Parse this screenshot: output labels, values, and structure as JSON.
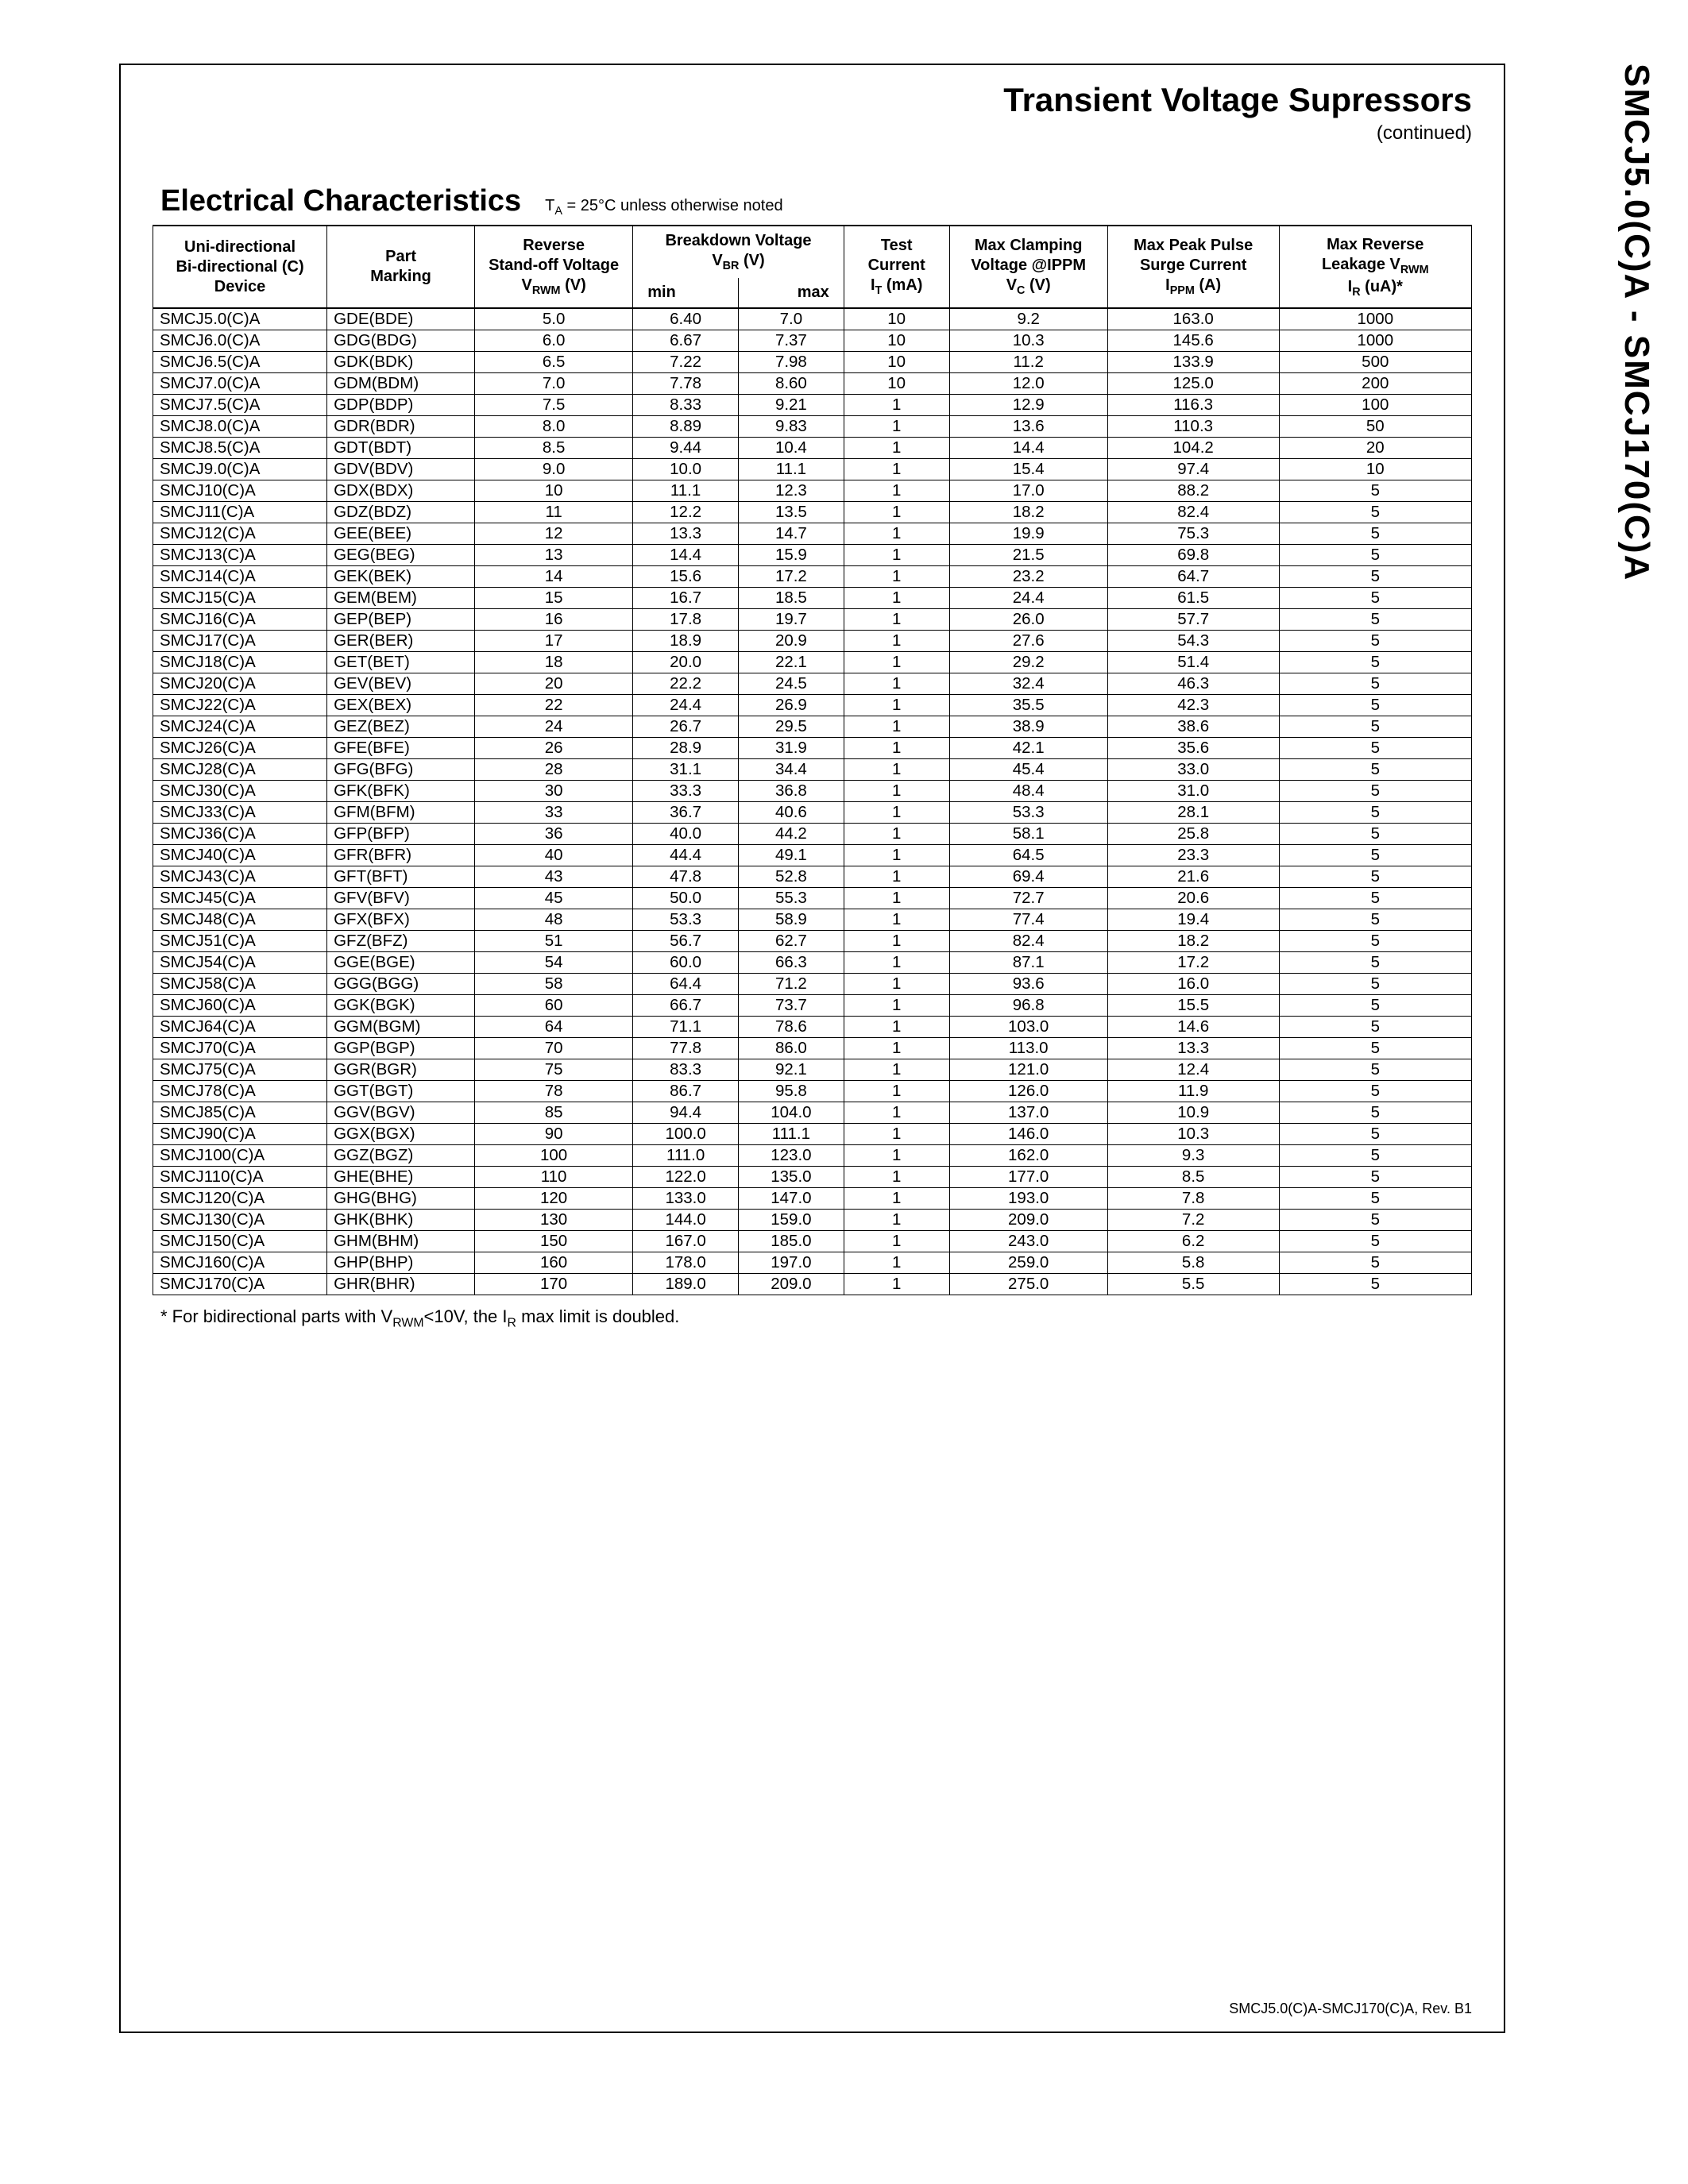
{
  "vertical_label": "SMCJ5.0(C)A - SMCJ170(C)A",
  "header": {
    "title": "Transient Voltage Supressors",
    "continued": "(continued)"
  },
  "section": {
    "title": "Electrical Characteristics",
    "condition": "T_A = 25°C unless otherwise noted"
  },
  "columns": {
    "device": [
      "Uni-directional",
      "Bi-directional (C)",
      "Device"
    ],
    "marking": [
      "Part",
      "Marking"
    ],
    "vrwm": [
      "Reverse",
      "Stand-off Voltage",
      "V_RWM (V)"
    ],
    "breakdown": [
      "Breakdown Voltage",
      "V_BR (V)"
    ],
    "breakdown_min": "min",
    "breakdown_max": "max",
    "it": [
      "Test",
      "Current",
      "I_T (mA)"
    ],
    "vc": [
      "Max  Clamping",
      "Voltage @IPPM",
      "V_C (V)"
    ],
    "ippm": [
      "Max Peak Pulse",
      "Surge Current",
      "I_PPM (A)"
    ],
    "ir": [
      "Max Reverse",
      "Leakage V_RWM",
      "I_R (uA)*"
    ]
  },
  "rows": [
    {
      "device": "SMCJ5.0(C)A",
      "marking": "GDE(BDE)",
      "vrwm": "5.0",
      "bv_min": "6.40",
      "bv_max": "7.0",
      "it": "10",
      "vc": "9.2",
      "ippm": "163.0",
      "ir": "1000"
    },
    {
      "device": "SMCJ6.0(C)A",
      "marking": "GDG(BDG)",
      "vrwm": "6.0",
      "bv_min": "6.67",
      "bv_max": "7.37",
      "it": "10",
      "vc": "10.3",
      "ippm": "145.6",
      "ir": "1000"
    },
    {
      "device": "SMCJ6.5(C)A",
      "marking": "GDK(BDK)",
      "vrwm": "6.5",
      "bv_min": "7.22",
      "bv_max": "7.98",
      "it": "10",
      "vc": "11.2",
      "ippm": "133.9",
      "ir": "500"
    },
    {
      "device": "SMCJ7.0(C)A",
      "marking": "GDM(BDM)",
      "vrwm": "7.0",
      "bv_min": "7.78",
      "bv_max": "8.60",
      "it": "10",
      "vc": "12.0",
      "ippm": "125.0",
      "ir": "200"
    },
    {
      "device": "SMCJ7.5(C)A",
      "marking": "GDP(BDP)",
      "vrwm": "7.5",
      "bv_min": "8.33",
      "bv_max": "9.21",
      "it": "1",
      "vc": "12.9",
      "ippm": "116.3",
      "ir": "100"
    },
    {
      "device": "SMCJ8.0(C)A",
      "marking": "GDR(BDR)",
      "vrwm": "8.0",
      "bv_min": "8.89",
      "bv_max": "9.83",
      "it": "1",
      "vc": "13.6",
      "ippm": "110.3",
      "ir": "50"
    },
    {
      "device": "SMCJ8.5(C)A",
      "marking": "GDT(BDT)",
      "vrwm": "8.5",
      "bv_min": "9.44",
      "bv_max": "10.4",
      "it": "1",
      "vc": "14.4",
      "ippm": "104.2",
      "ir": "20"
    },
    {
      "device": "SMCJ9.0(C)A",
      "marking": "GDV(BDV)",
      "vrwm": "9.0",
      "bv_min": "10.0",
      "bv_max": "11.1",
      "it": "1",
      "vc": "15.4",
      "ippm": "97.4",
      "ir": "10"
    },
    {
      "device": "SMCJ10(C)A",
      "marking": "GDX(BDX)",
      "vrwm": "10",
      "bv_min": "11.1",
      "bv_max": "12.3",
      "it": "1",
      "vc": "17.0",
      "ippm": "88.2",
      "ir": "5"
    },
    {
      "device": "SMCJ11(C)A",
      "marking": "GDZ(BDZ)",
      "vrwm": "11",
      "bv_min": "12.2",
      "bv_max": "13.5",
      "it": "1",
      "vc": "18.2",
      "ippm": "82.4",
      "ir": "5"
    },
    {
      "device": "SMCJ12(C)A",
      "marking": "GEE(BEE)",
      "vrwm": "12",
      "bv_min": "13.3",
      "bv_max": "14.7",
      "it": "1",
      "vc": "19.9",
      "ippm": "75.3",
      "ir": "5"
    },
    {
      "device": "SMCJ13(C)A",
      "marking": "GEG(BEG)",
      "vrwm": "13",
      "bv_min": "14.4",
      "bv_max": "15.9",
      "it": "1",
      "vc": "21.5",
      "ippm": "69.8",
      "ir": "5"
    },
    {
      "device": "SMCJ14(C)A",
      "marking": "GEK(BEK)",
      "vrwm": "14",
      "bv_min": "15.6",
      "bv_max": "17.2",
      "it": "1",
      "vc": "23.2",
      "ippm": "64.7",
      "ir": "5"
    },
    {
      "device": "SMCJ15(C)A",
      "marking": "GEM(BEM)",
      "vrwm": "15",
      "bv_min": "16.7",
      "bv_max": "18.5",
      "it": "1",
      "vc": "24.4",
      "ippm": "61.5",
      "ir": "5"
    },
    {
      "device": "SMCJ16(C)A",
      "marking": "GEP(BEP)",
      "vrwm": "16",
      "bv_min": "17.8",
      "bv_max": "19.7",
      "it": "1",
      "vc": "26.0",
      "ippm": "57.7",
      "ir": "5"
    },
    {
      "device": "SMCJ17(C)A",
      "marking": "GER(BER)",
      "vrwm": "17",
      "bv_min": "18.9",
      "bv_max": "20.9",
      "it": "1",
      "vc": "27.6",
      "ippm": "54.3",
      "ir": "5"
    },
    {
      "device": "SMCJ18(C)A",
      "marking": "GET(BET)",
      "vrwm": "18",
      "bv_min": "20.0",
      "bv_max": "22.1",
      "it": "1",
      "vc": "29.2",
      "ippm": "51.4",
      "ir": "5"
    },
    {
      "device": "SMCJ20(C)A",
      "marking": "GEV(BEV)",
      "vrwm": "20",
      "bv_min": "22.2",
      "bv_max": "24.5",
      "it": "1",
      "vc": "32.4",
      "ippm": "46.3",
      "ir": "5"
    },
    {
      "device": "SMCJ22(C)A",
      "marking": "GEX(BEX)",
      "vrwm": "22",
      "bv_min": "24.4",
      "bv_max": "26.9",
      "it": "1",
      "vc": "35.5",
      "ippm": "42.3",
      "ir": "5"
    },
    {
      "device": "SMCJ24(C)A",
      "marking": "GEZ(BEZ)",
      "vrwm": "24",
      "bv_min": "26.7",
      "bv_max": "29.5",
      "it": "1",
      "vc": "38.9",
      "ippm": "38.6",
      "ir": "5"
    },
    {
      "device": "SMCJ26(C)A",
      "marking": "GFE(BFE)",
      "vrwm": "26",
      "bv_min": "28.9",
      "bv_max": "31.9",
      "it": "1",
      "vc": "42.1",
      "ippm": "35.6",
      "ir": "5"
    },
    {
      "device": "SMCJ28(C)A",
      "marking": "GFG(BFG)",
      "vrwm": "28",
      "bv_min": "31.1",
      "bv_max": "34.4",
      "it": "1",
      "vc": "45.4",
      "ippm": "33.0",
      "ir": "5"
    },
    {
      "device": "SMCJ30(C)A",
      "marking": "GFK(BFK)",
      "vrwm": "30",
      "bv_min": "33.3",
      "bv_max": "36.8",
      "it": "1",
      "vc": "48.4",
      "ippm": "31.0",
      "ir": "5"
    },
    {
      "device": "SMCJ33(C)A",
      "marking": "GFM(BFM)",
      "vrwm": "33",
      "bv_min": "36.7",
      "bv_max": "40.6",
      "it": "1",
      "vc": "53.3",
      "ippm": "28.1",
      "ir": "5"
    },
    {
      "device": "SMCJ36(C)A",
      "marking": "GFP(BFP)",
      "vrwm": "36",
      "bv_min": "40.0",
      "bv_max": "44.2",
      "it": "1",
      "vc": "58.1",
      "ippm": "25.8",
      "ir": "5"
    },
    {
      "device": "SMCJ40(C)A",
      "marking": "GFR(BFR)",
      "vrwm": "40",
      "bv_min": "44.4",
      "bv_max": "49.1",
      "it": "1",
      "vc": "64.5",
      "ippm": "23.3",
      "ir": "5"
    },
    {
      "device": "SMCJ43(C)A",
      "marking": "GFT(BFT)",
      "vrwm": "43",
      "bv_min": "47.8",
      "bv_max": "52.8",
      "it": "1",
      "vc": "69.4",
      "ippm": "21.6",
      "ir": "5"
    },
    {
      "device": "SMCJ45(C)A",
      "marking": "GFV(BFV)",
      "vrwm": "45",
      "bv_min": "50.0",
      "bv_max": "55.3",
      "it": "1",
      "vc": "72.7",
      "ippm": "20.6",
      "ir": "5"
    },
    {
      "device": "SMCJ48(C)A",
      "marking": "GFX(BFX)",
      "vrwm": "48",
      "bv_min": "53.3",
      "bv_max": "58.9",
      "it": "1",
      "vc": "77.4",
      "ippm": "19.4",
      "ir": "5"
    },
    {
      "device": "SMCJ51(C)A",
      "marking": "GFZ(BFZ)",
      "vrwm": "51",
      "bv_min": "56.7",
      "bv_max": "62.7",
      "it": "1",
      "vc": "82.4",
      "ippm": "18.2",
      "ir": "5"
    },
    {
      "device": "SMCJ54(C)A",
      "marking": "GGE(BGE)",
      "vrwm": "54",
      "bv_min": "60.0",
      "bv_max": "66.3",
      "it": "1",
      "vc": "87.1",
      "ippm": "17.2",
      "ir": "5"
    },
    {
      "device": "SMCJ58(C)A",
      "marking": "GGG(BGG)",
      "vrwm": "58",
      "bv_min": "64.4",
      "bv_max": "71.2",
      "it": "1",
      "vc": "93.6",
      "ippm": "16.0",
      "ir": "5"
    },
    {
      "device": "SMCJ60(C)A",
      "marking": "GGK(BGK)",
      "vrwm": "60",
      "bv_min": "66.7",
      "bv_max": "73.7",
      "it": "1",
      "vc": "96.8",
      "ippm": "15.5",
      "ir": "5"
    },
    {
      "device": "SMCJ64(C)A",
      "marking": "GGM(BGM)",
      "vrwm": "64",
      "bv_min": "71.1",
      "bv_max": "78.6",
      "it": "1",
      "vc": "103.0",
      "ippm": "14.6",
      "ir": "5"
    },
    {
      "device": "SMCJ70(C)A",
      "marking": "GGP(BGP)",
      "vrwm": "70",
      "bv_min": "77.8",
      "bv_max": "86.0",
      "it": "1",
      "vc": "113.0",
      "ippm": "13.3",
      "ir": "5"
    },
    {
      "device": "SMCJ75(C)A",
      "marking": "GGR(BGR)",
      "vrwm": "75",
      "bv_min": "83.3",
      "bv_max": "92.1",
      "it": "1",
      "vc": "121.0",
      "ippm": "12.4",
      "ir": "5"
    },
    {
      "device": "SMCJ78(C)A",
      "marking": "GGT(BGT)",
      "vrwm": "78",
      "bv_min": "86.7",
      "bv_max": "95.8",
      "it": "1",
      "vc": "126.0",
      "ippm": "11.9",
      "ir": "5"
    },
    {
      "device": "SMCJ85(C)A",
      "marking": "GGV(BGV)",
      "vrwm": "85",
      "bv_min": "94.4",
      "bv_max": "104.0",
      "it": "1",
      "vc": "137.0",
      "ippm": "10.9",
      "ir": "5"
    },
    {
      "device": "SMCJ90(C)A",
      "marking": "GGX(BGX)",
      "vrwm": "90",
      "bv_min": "100.0",
      "bv_max": "111.1",
      "it": "1",
      "vc": "146.0",
      "ippm": "10.3",
      "ir": "5"
    },
    {
      "device": "SMCJ100(C)A",
      "marking": "GGZ(BGZ)",
      "vrwm": "100",
      "bv_min": "111.0",
      "bv_max": "123.0",
      "it": "1",
      "vc": "162.0",
      "ippm": "9.3",
      "ir": "5"
    },
    {
      "device": "SMCJ110(C)A",
      "marking": "GHE(BHE)",
      "vrwm": "110",
      "bv_min": "122.0",
      "bv_max": "135.0",
      "it": "1",
      "vc": "177.0",
      "ippm": "8.5",
      "ir": "5"
    },
    {
      "device": "SMCJ120(C)A",
      "marking": "GHG(BHG)",
      "vrwm": "120",
      "bv_min": "133.0",
      "bv_max": "147.0",
      "it": "1",
      "vc": "193.0",
      "ippm": "7.8",
      "ir": "5"
    },
    {
      "device": "SMCJ130(C)A",
      "marking": "GHK(BHK)",
      "vrwm": "130",
      "bv_min": "144.0",
      "bv_max": "159.0",
      "it": "1",
      "vc": "209.0",
      "ippm": "7.2",
      "ir": "5"
    },
    {
      "device": "SMCJ150(C)A",
      "marking": "GHM(BHM)",
      "vrwm": "150",
      "bv_min": "167.0",
      "bv_max": "185.0",
      "it": "1",
      "vc": "243.0",
      "ippm": "6.2",
      "ir": "5"
    },
    {
      "device": "SMCJ160(C)A",
      "marking": "GHP(BHP)",
      "vrwm": "160",
      "bv_min": "178.0",
      "bv_max": "197.0",
      "it": "1",
      "vc": "259.0",
      "ippm": "5.8",
      "ir": "5"
    },
    {
      "device": "SMCJ170(C)A",
      "marking": "GHR(BHR)",
      "vrwm": "170",
      "bv_min": "189.0",
      "bv_max": "209.0",
      "it": "1",
      "vc": "275.0",
      "ippm": "5.5",
      "ir": "5"
    }
  ],
  "footnote": "* For bidirectional parts with V_RWM<10V, the I_R max limit is doubled.",
  "footer": "SMCJ5.0(C)A-SMCJ170(C)A,  Rev. B1"
}
